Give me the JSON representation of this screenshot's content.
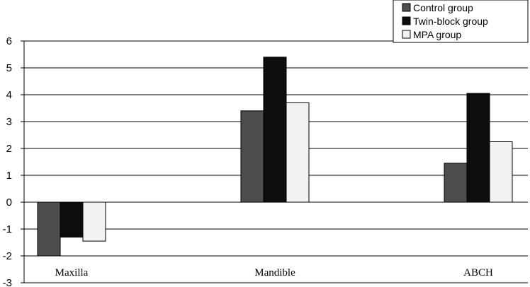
{
  "chart_data": {
    "type": "bar",
    "categories": [
      "Maxilla",
      "Mandible",
      "ABCH"
    ],
    "series": [
      {
        "name": "Control group",
        "values": [
          -2.0,
          3.4,
          1.45
        ],
        "color": "#4d4d4d"
      },
      {
        "name": "Twin-block group",
        "values": [
          -1.3,
          5.4,
          4.05
        ],
        "color": "#0d0d0d"
      },
      {
        "name": "MPA group",
        "values": [
          -1.45,
          3.7,
          2.25
        ],
        "color": "#f2f2f2"
      }
    ],
    "yticks": [
      "6",
      "5",
      "4",
      "3",
      "2",
      "1",
      "0",
      "-1",
      "-2",
      "-3"
    ],
    "ylim": [
      -3,
      6
    ],
    "grid": true,
    "legend_position": "top-right"
  }
}
